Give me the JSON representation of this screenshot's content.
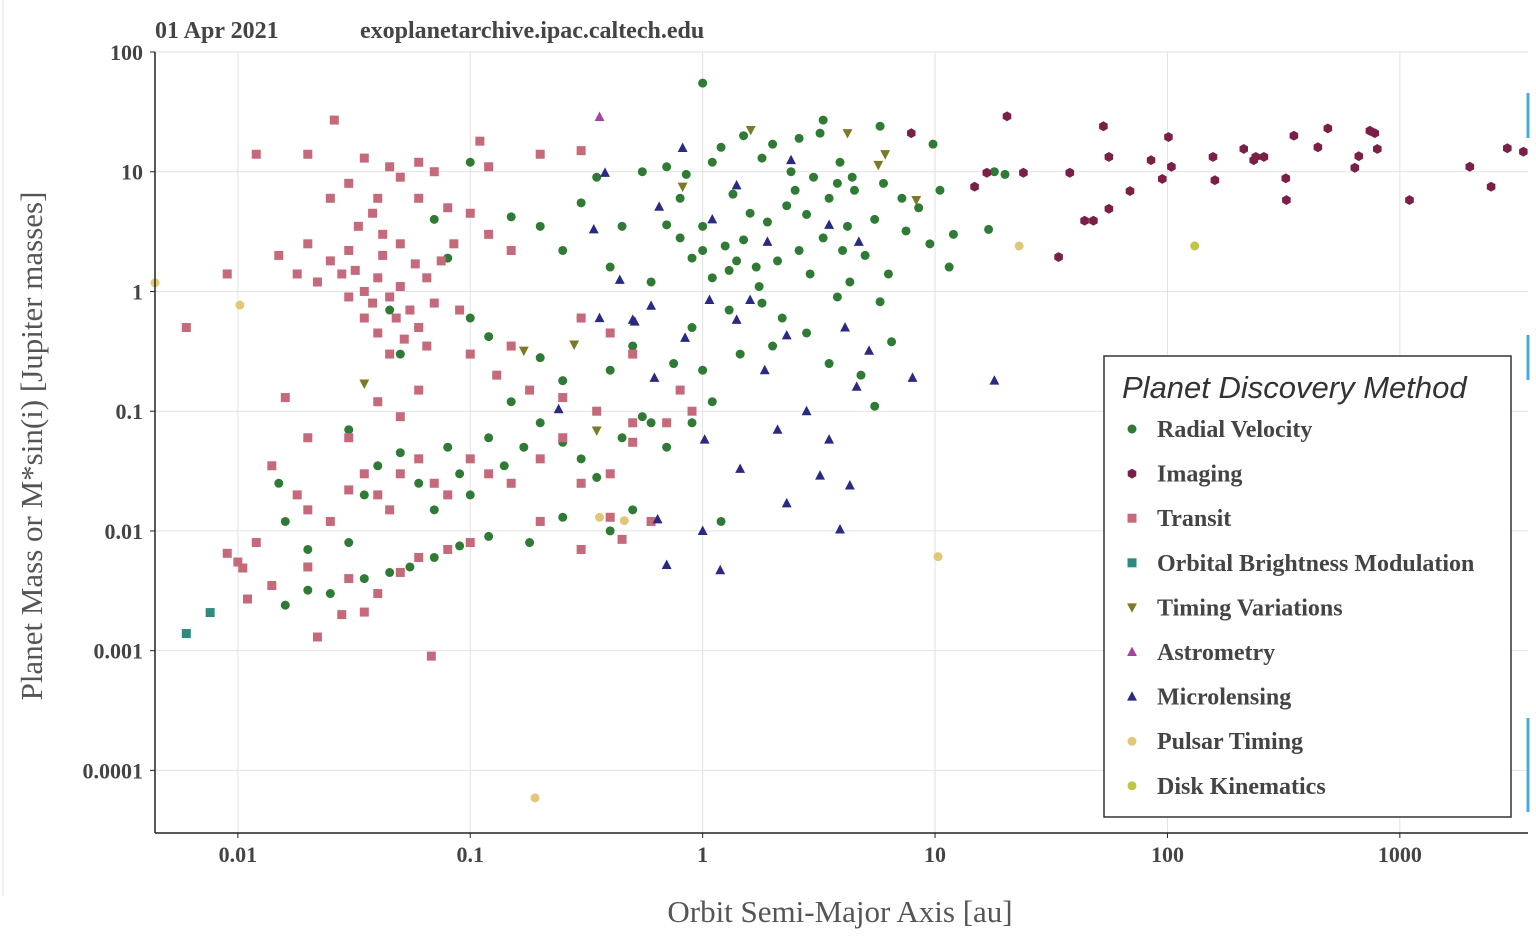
{
  "chart_data": {
    "type": "scatter",
    "date": "01 Apr 2021",
    "source": "exoplanetarchive.ipac.caltech.edu",
    "x_label": "Orbit Semi-Major Axis [au]",
    "y_label": "Planet Mass or M*sin(i) [Jupiter masses]",
    "legend_title": "Planet Discovery Method",
    "legend_position": "right",
    "xscale": "log",
    "yscale": "log",
    "grid": true,
    "xlim": [
      0.0044,
      3560
    ],
    "ylim": [
      3e-05,
      100
    ],
    "xticks": [
      0.01,
      0.1,
      1,
      10,
      100,
      1000
    ],
    "yticks": [
      0.0001,
      0.001,
      0.01,
      0.1,
      1,
      10,
      100
    ],
    "series": [
      {
        "name": "Radial Velocity",
        "color": "#2f7a34",
        "marker": "circle",
        "x": [
          1.0,
          3.3,
          5.8,
          9.8,
          3.2,
          1.5,
          2.6,
          2.0,
          1.2,
          0.55,
          0.35,
          0.7,
          1.1,
          1.8,
          2.4,
          3.0,
          3.8,
          4.5,
          6.0,
          7.2,
          8.5,
          10.5,
          12,
          11.5,
          9.5,
          7.5,
          5.5,
          4.2,
          3.3,
          2.6,
          2.1,
          1.7,
          1.4,
          1.25,
          1.3,
          1.1,
          1.0,
          0.9,
          0.8,
          0.7,
          0.6,
          1.5,
          1.9,
          2.3,
          2.8,
          3.5,
          4.0,
          5.0,
          6.3,
          6.5,
          5.8,
          5.5,
          4.8,
          3.5,
          2.8,
          2.2,
          1.8,
          1.3,
          0.9,
          0.75,
          0.5,
          0.4,
          0.3,
          0.25,
          0.2,
          0.15,
          0.12,
          0.1,
          0.08,
          0.06,
          0.05,
          0.045,
          0.04,
          0.03,
          0.035,
          0.04,
          0.05,
          0.06,
          0.07,
          0.08,
          0.09,
          0.1,
          0.12,
          0.14,
          0.17,
          0.2,
          0.25,
          0.3,
          0.35,
          0.45,
          0.55,
          0.7,
          0.9,
          1.1,
          1.2,
          0.5,
          0.4,
          0.25,
          0.18,
          0.12,
          0.09,
          0.07,
          0.055,
          0.045,
          0.035,
          0.025,
          0.02,
          0.016,
          0.016,
          0.02,
          0.03,
          0.015,
          0.3,
          0.25,
          0.2,
          0.15,
          0.1,
          0.07,
          0.4,
          0.45,
          17,
          20,
          18,
          2.5,
          3.9,
          4.4,
          1.6,
          1.0,
          0.8,
          0.85,
          1.35,
          1.75,
          2.9,
          3.8,
          4.3,
          2.0,
          1.45,
          1.0,
          0.6
        ],
        "values": [
          55,
          27,
          24,
          17,
          21,
          20,
          19,
          17,
          16,
          10,
          9,
          11,
          12,
          13,
          10,
          9,
          8,
          7,
          8,
          6,
          5,
          7,
          3,
          1.6,
          2.5,
          3.2,
          4,
          3.5,
          2.8,
          2.2,
          1.8,
          1.6,
          1.8,
          2.4,
          1.5,
          1.3,
          2.2,
          1.9,
          2.8,
          3.6,
          1.2,
          2.7,
          3.8,
          5.2,
          4.4,
          6,
          2.2,
          2.0,
          1.4,
          0.38,
          0.82,
          0.11,
          0.2,
          0.25,
          0.45,
          0.6,
          0.8,
          0.7,
          0.5,
          0.25,
          0.35,
          0.22,
          0.6,
          0.18,
          0.28,
          0.12,
          0.42,
          0.6,
          1.9,
          0.5,
          0.3,
          0.7,
          0.12,
          0.07,
          0.02,
          0.035,
          0.045,
          0.025,
          0.015,
          0.05,
          0.03,
          0.02,
          0.06,
          0.035,
          0.05,
          0.08,
          0.055,
          0.04,
          0.028,
          0.06,
          0.09,
          0.05,
          0.08,
          0.12,
          0.012,
          0.015,
          0.01,
          0.013,
          0.008,
          0.009,
          0.0075,
          0.006,
          0.005,
          0.0045,
          0.004,
          0.003,
          0.0032,
          0.0024,
          0.012,
          0.007,
          0.008,
          0.025,
          5.5,
          2.2,
          3.5,
          4.2,
          12,
          4,
          1.6,
          3.5,
          3.3,
          9.5,
          10,
          7,
          12,
          9,
          4.5,
          3.5,
          6,
          9.5,
          6.5,
          1.1,
          1.4,
          0.9,
          1.2,
          0.35,
          0.3,
          0.22,
          0.08
        ]
      },
      {
        "name": "Imaging",
        "color": "#7a1f45",
        "marker": "hexagon",
        "x": [
          7.9,
          14.8,
          20.4,
          16.7,
          24,
          34,
          38,
          44,
          48,
          53,
          56,
          56,
          69,
          85,
          95,
          101,
          104,
          157,
          160,
          213,
          235,
          240,
          260,
          323,
          325,
          350,
          444,
          490,
          666,
          640,
          743,
          780,
          800,
          1100,
          2000,
          2470,
          2900,
          3400
        ],
        "values": [
          21,
          7.5,
          29,
          9.8,
          9.8,
          1.94,
          9.8,
          3.9,
          3.9,
          24,
          13.3,
          4.9,
          6.9,
          12.5,
          8.7,
          19.5,
          11,
          13.3,
          8.5,
          15.5,
          12.5,
          13.3,
          13.3,
          8.8,
          5.8,
          20,
          16,
          23,
          13.5,
          10.8,
          22,
          21,
          15.5,
          5.8,
          11,
          7.5,
          15.7,
          14.7
        ]
      },
      {
        "name": "Transit",
        "color": "#c46a7a",
        "marker": "square",
        "x": [
          0.026,
          0.012,
          0.02,
          0.035,
          0.06,
          0.07,
          0.12,
          0.2,
          0.3,
          0.11,
          0.045,
          0.05,
          0.03,
          0.025,
          0.04,
          0.06,
          0.08,
          0.1,
          0.12,
          0.15,
          0.02,
          0.015,
          0.018,
          0.022,
          0.025,
          0.03,
          0.032,
          0.035,
          0.038,
          0.04,
          0.042,
          0.045,
          0.048,
          0.05,
          0.055,
          0.06,
          0.065,
          0.07,
          0.052,
          0.045,
          0.04,
          0.035,
          0.03,
          0.028,
          0.033,
          0.038,
          0.042,
          0.05,
          0.058,
          0.065,
          0.075,
          0.085,
          0.09,
          0.1,
          0.13,
          0.15,
          0.18,
          0.25,
          0.35,
          0.5,
          0.5,
          0.4,
          0.3,
          0.7,
          0.8,
          0.06,
          0.05,
          0.04,
          0.03,
          0.02,
          0.016,
          0.014,
          0.018,
          0.02,
          0.025,
          0.03,
          0.035,
          0.04,
          0.045,
          0.05,
          0.06,
          0.07,
          0.08,
          0.1,
          0.12,
          0.15,
          0.2,
          0.25,
          0.3,
          0.4,
          0.02,
          0.03,
          0.04,
          0.05,
          0.06,
          0.08,
          0.1,
          0.2,
          0.3,
          0.014,
          0.01,
          0.011,
          0.009,
          0.0105,
          0.012,
          0.009,
          0.006,
          0.022,
          0.028,
          0.035,
          0.068,
          0.4,
          0.5,
          0.6,
          0.45,
          0.9
        ],
        "values": [
          27,
          14,
          14,
          13,
          12,
          10,
          11,
          14,
          15,
          18,
          11,
          9,
          8,
          6,
          6,
          6,
          5,
          4.5,
          3,
          2.2,
          2.5,
          2,
          1.4,
          1.2,
          1.8,
          2.2,
          1.5,
          1.0,
          0.8,
          1.3,
          2.0,
          0.9,
          0.6,
          1.1,
          0.7,
          0.5,
          0.35,
          0.8,
          0.4,
          0.3,
          0.45,
          0.6,
          0.9,
          1.4,
          3.5,
          4.5,
          3,
          2.5,
          1.7,
          1.3,
          1.8,
          2.5,
          0.7,
          0.3,
          0.2,
          0.35,
          0.15,
          0.13,
          0.1,
          0.08,
          0.3,
          0.45,
          0.6,
          0.08,
          0.15,
          0.15,
          0.09,
          0.12,
          0.06,
          0.06,
          0.13,
          0.035,
          0.02,
          0.015,
          0.012,
          0.022,
          0.03,
          0.02,
          0.015,
          0.03,
          0.04,
          0.025,
          0.02,
          0.04,
          0.03,
          0.025,
          0.04,
          0.06,
          0.025,
          0.03,
          0.005,
          0.004,
          0.003,
          0.0045,
          0.006,
          0.007,
          0.008,
          0.012,
          0.007,
          0.0035,
          0.0055,
          0.0027,
          0.0065,
          0.0049,
          0.008,
          1.4,
          0.5,
          0.0013,
          0.002,
          0.0021,
          0.0009,
          0.013,
          0.055,
          0.012,
          0.0085,
          0.1
        ]
      },
      {
        "name": "Orbital Brightness Modulation",
        "color": "#2e8a7e",
        "marker": "square",
        "x": [
          0.006,
          0.0076
        ],
        "values": [
          0.00139,
          0.00208
        ]
      },
      {
        "name": "Timing Variations",
        "color": "#7b7a25",
        "marker": "triangle-down",
        "x": [
          1.61,
          4.2,
          5.7,
          6.1,
          0.035,
          0.28,
          0.82,
          8.3,
          0.17,
          0.35
        ],
        "values": [
          22.3,
          21,
          11.4,
          14,
          0.17,
          0.36,
          7.5,
          5.8,
          0.32,
          0.069
        ]
      },
      {
        "name": "Astrometry",
        "color": "#a445a0",
        "marker": "triangle-up",
        "x": [
          0.36
        ],
        "values": [
          28.7
        ]
      },
      {
        "name": "Microlensing",
        "color": "#2a2a82",
        "marker": "triangle-up",
        "x": [
          0.34,
          0.82,
          0.65,
          1.9,
          8.0,
          18,
          0.6,
          0.51,
          0.38,
          0.24,
          0.62,
          1.45,
          1.19,
          0.7,
          1.0,
          0.64,
          2.3,
          3.9,
          4.3,
          3.2,
          2.1,
          2.8,
          1.85,
          2.3,
          4.1,
          5.2,
          3.5,
          4.6,
          1.4,
          0.84,
          0.36,
          0.5,
          1.1,
          1.4,
          2.4,
          3.5,
          4.7,
          0.44,
          1.6,
          1.02,
          1.07
        ],
        "values": [
          3.3,
          15.8,
          5.1,
          2.6,
          0.19,
          0.18,
          0.76,
          0.56,
          9.8,
          0.104,
          0.19,
          0.033,
          0.0047,
          0.0052,
          0.01,
          0.0125,
          0.017,
          0.0103,
          0.024,
          0.029,
          0.07,
          0.1,
          0.22,
          0.43,
          0.5,
          0.32,
          0.058,
          0.16,
          0.58,
          0.41,
          0.6,
          0.58,
          4.0,
          7.7,
          12.5,
          3.6,
          2.6,
          1.25,
          0.85,
          0.058,
          0.85
        ]
      },
      {
        "name": "Pulsar Timing",
        "color": "#e0c878",
        "marker": "circle",
        "x": [
          0.0044,
          0.0102,
          23,
          10.3,
          0.19,
          0.46,
          0.36
        ],
        "values": [
          1.18,
          0.77,
          2.4,
          0.0061,
          5.9e-05,
          0.0122,
          0.013
        ]
      },
      {
        "name": "Disk Kinematics",
        "color": "#c2c445",
        "marker": "circle",
        "x": [
          131
        ],
        "values": [
          2.4
        ]
      }
    ]
  }
}
